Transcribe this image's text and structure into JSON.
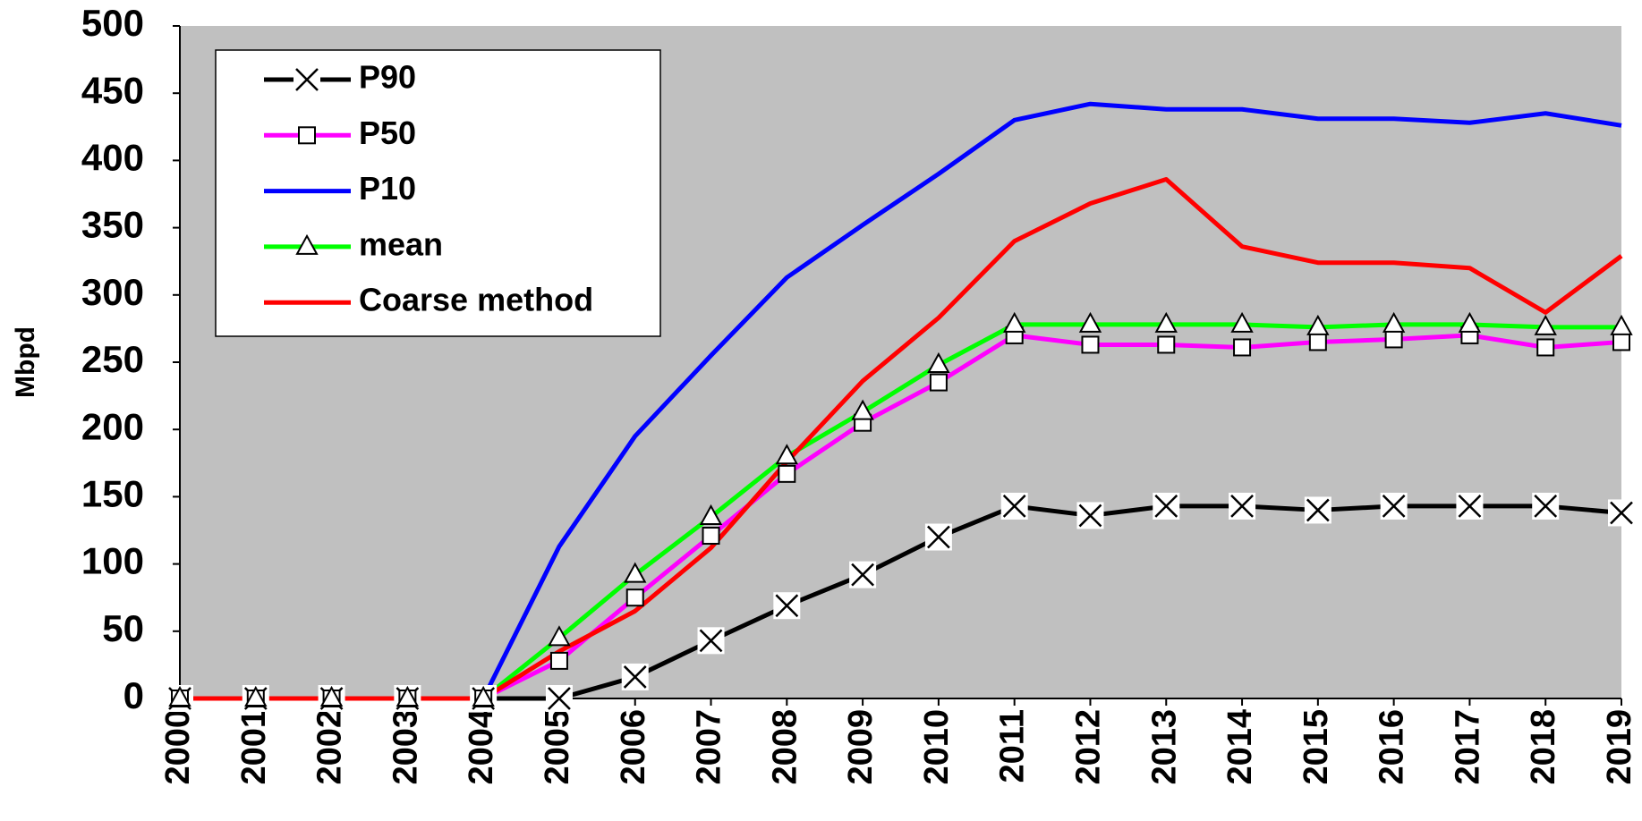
{
  "chart_data": {
    "type": "line",
    "y_label": "Mbpd",
    "categories": [
      "2000",
      "2001",
      "2002",
      "2003",
      "2004",
      "2005",
      "2006",
      "2007",
      "2008",
      "2009",
      "2010",
      "2011",
      "2012",
      "2013",
      "2014",
      "2015",
      "2016",
      "2017",
      "2018",
      "2019"
    ],
    "series": [
      {
        "name": "P90",
        "color": "#000000",
        "marker": "x",
        "values": [
          0,
          0,
          0,
          0,
          0,
          0,
          16,
          43,
          69,
          92,
          120,
          143,
          136,
          143,
          143,
          140,
          143,
          143,
          143,
          138
        ]
      },
      {
        "name": "P50",
        "color": "#ff00ff",
        "marker": "square",
        "values": [
          0,
          0,
          0,
          0,
          0,
          28,
          75,
          121,
          167,
          205,
          235,
          270,
          263,
          263,
          261,
          265,
          267,
          270,
          261,
          265
        ]
      },
      {
        "name": "P10",
        "color": "#0000ff",
        "values": [
          0,
          0,
          0,
          0,
          0,
          113,
          195,
          255,
          313,
          352,
          390,
          430,
          442,
          438,
          438,
          431,
          431,
          428,
          435,
          426
        ]
      },
      {
        "name": "mean",
        "color": "#00ff00",
        "marker": "triangle",
        "values": [
          0,
          0,
          0,
          0,
          0,
          45,
          92,
          135,
          180,
          213,
          248,
          278,
          278,
          278,
          278,
          276,
          278,
          278,
          276,
          276
        ]
      },
      {
        "name": "Coarse method",
        "color": "#ff0000",
        "values": [
          0,
          0,
          0,
          0,
          0,
          35,
          65,
          112,
          176,
          236,
          283,
          340,
          368,
          386,
          336,
          324,
          324,
          320,
          287,
          329
        ]
      }
    ],
    "ylim": [
      0,
      500
    ],
    "yticks": [
      0,
      50,
      100,
      150,
      200,
      250,
      300,
      350,
      400,
      450,
      500
    ],
    "plot_background": "#c0c0c0",
    "legend": "top-left"
  }
}
